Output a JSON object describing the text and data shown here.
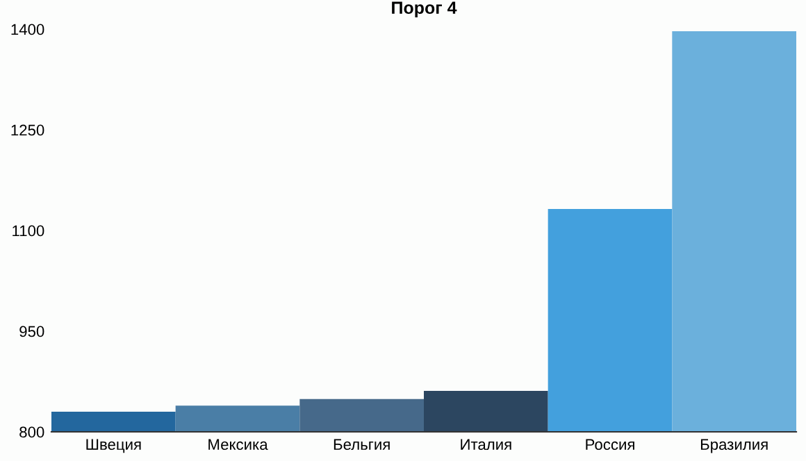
{
  "chart_data": {
    "type": "bar",
    "title": "Порог 4",
    "categories": [
      "Швеция",
      "Мексика",
      "Бельгия",
      "Италия",
      "Россия",
      "Бразилия"
    ],
    "values": [
      830,
      839,
      849,
      861,
      1132,
      1397
    ],
    "colors": [
      "#23679e",
      "#4a7ea6",
      "#46698a",
      "#2c4660",
      "#43a0dd",
      "#6bb0dc"
    ],
    "ylim": [
      800,
      1400
    ],
    "yticks": [
      800,
      950,
      1100,
      1250,
      1400
    ],
    "grid": false
  }
}
